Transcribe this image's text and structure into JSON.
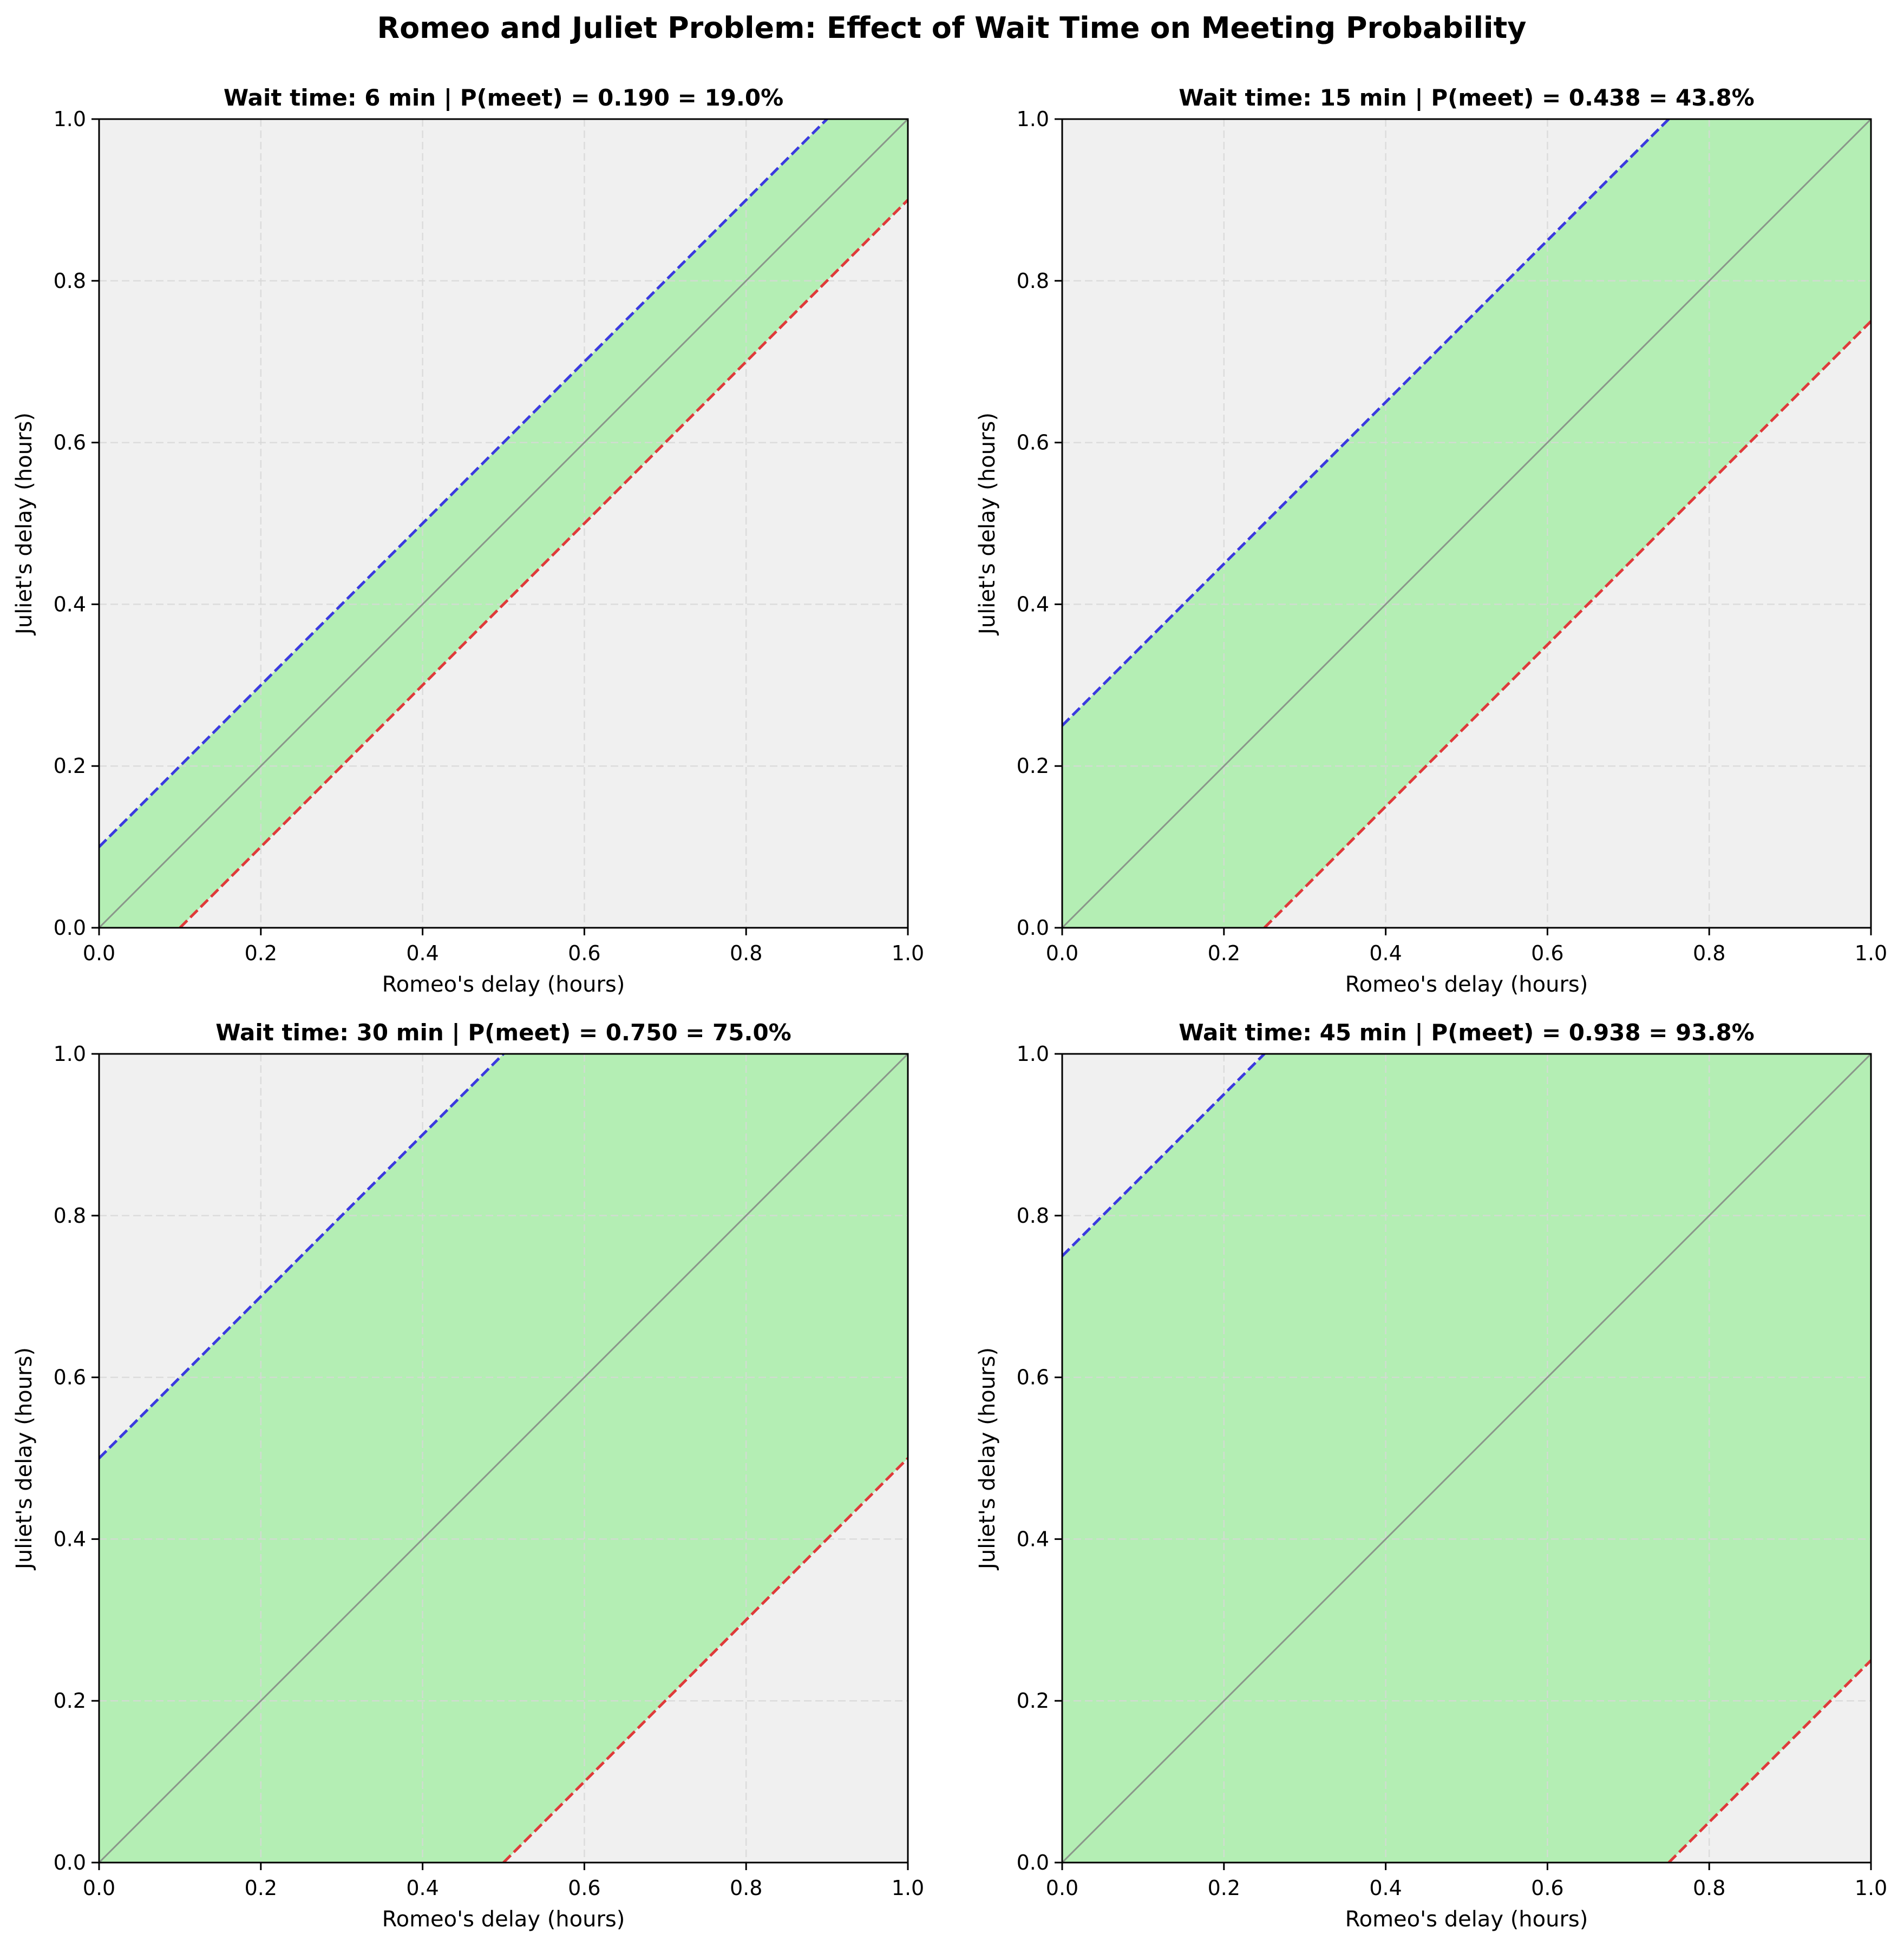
{
  "suptitle": "Romeo and Juliet Problem: Effect of Wait Time on Meeting Probability",
  "colors": {
    "axes_background": "#f0f0f0",
    "meeting_region": "#b4eeb4",
    "upper_boundary": "#3a3adf",
    "lower_boundary": "#df3a3a",
    "diagonal": "#808080",
    "grid": "#d8d8d8"
  },
  "chart_data": [
    {
      "type": "area",
      "title": "Wait time: 6 min | P(meet) = 0.190 = 19.0%",
      "wait_minutes": 6,
      "wait_hours": 0.1,
      "p_meet": 0.19,
      "xlabel": "Romeo's delay (hours)",
      "ylabel": "Juliet's delay (hours)",
      "xlim": [
        0,
        1
      ],
      "ylim": [
        0,
        1
      ],
      "xticks": [
        "0.0",
        "0.2",
        "0.4",
        "0.6",
        "0.8",
        "1.0"
      ],
      "yticks": [
        "0.0",
        "0.2",
        "0.4",
        "0.6",
        "0.8",
        "1.0"
      ],
      "grid": true,
      "series": [
        {
          "x": [
            0,
            0.9
          ],
          "y": [
            0.1,
            1.0
          ],
          "style": "dashed"
        },
        {
          "x": [
            0.1,
            1.0
          ],
          "y": [
            0,
            0.9
          ],
          "style": "dashed"
        },
        {
          "x": [
            0,
            1
          ],
          "y": [
            0,
            1
          ],
          "style": "solid"
        }
      ]
    },
    {
      "type": "area",
      "title": "Wait time: 15 min | P(meet) = 0.438 = 43.8%",
      "wait_minutes": 15,
      "wait_hours": 0.25,
      "p_meet": 0.438,
      "xlabel": "Romeo's delay (hours)",
      "ylabel": "Juliet's delay (hours)",
      "xlim": [
        0,
        1
      ],
      "ylim": [
        0,
        1
      ],
      "xticks": [
        "0.0",
        "0.2",
        "0.4",
        "0.6",
        "0.8",
        "1.0"
      ],
      "yticks": [
        "0.0",
        "0.2",
        "0.4",
        "0.6",
        "0.8",
        "1.0"
      ],
      "grid": true,
      "series": [
        {
          "x": [
            0,
            0.75
          ],
          "y": [
            0.25,
            1.0
          ],
          "style": "dashed"
        },
        {
          "x": [
            0.25,
            1.0
          ],
          "y": [
            0,
            0.75
          ],
          "style": "dashed"
        },
        {
          "x": [
            0,
            1
          ],
          "y": [
            0,
            1
          ],
          "style": "solid"
        }
      ]
    },
    {
      "type": "area",
      "title": "Wait time: 30 min | P(meet) = 0.750 = 75.0%",
      "wait_minutes": 30,
      "wait_hours": 0.5,
      "p_meet": 0.75,
      "xlabel": "Romeo's delay (hours)",
      "ylabel": "Juliet's delay (hours)",
      "xlim": [
        0,
        1
      ],
      "ylim": [
        0,
        1
      ],
      "xticks": [
        "0.0",
        "0.2",
        "0.4",
        "0.6",
        "0.8",
        "1.0"
      ],
      "yticks": [
        "0.0",
        "0.2",
        "0.4",
        "0.6",
        "0.8",
        "1.0"
      ],
      "grid": true,
      "series": [
        {
          "x": [
            0,
            0.5
          ],
          "y": [
            0.5,
            1.0
          ],
          "style": "dashed"
        },
        {
          "x": [
            0.5,
            1.0
          ],
          "y": [
            0,
            0.5
          ],
          "style": "dashed"
        },
        {
          "x": [
            0,
            1
          ],
          "y": [
            0,
            1
          ],
          "style": "solid"
        }
      ]
    },
    {
      "type": "area",
      "title": "Wait time: 45 min | P(meet) = 0.938 = 93.8%",
      "wait_minutes": 45,
      "wait_hours": 0.75,
      "p_meet": 0.938,
      "xlabel": "Romeo's delay (hours)",
      "ylabel": "Juliet's delay (hours)",
      "xlim": [
        0,
        1
      ],
      "ylim": [
        0,
        1
      ],
      "xticks": [
        "0.0",
        "0.2",
        "0.4",
        "0.6",
        "0.8",
        "1.0"
      ],
      "yticks": [
        "0.0",
        "0.2",
        "0.4",
        "0.6",
        "0.8",
        "1.0"
      ],
      "grid": true,
      "series": [
        {
          "x": [
            0,
            0.25
          ],
          "y": [
            0.75,
            1.0
          ],
          "style": "dashed"
        },
        {
          "x": [
            0.75,
            1.0
          ],
          "y": [
            0,
            0.25
          ],
          "style": "dashed"
        },
        {
          "x": [
            0,
            1
          ],
          "y": [
            0,
            1
          ],
          "style": "solid"
        }
      ]
    }
  ]
}
